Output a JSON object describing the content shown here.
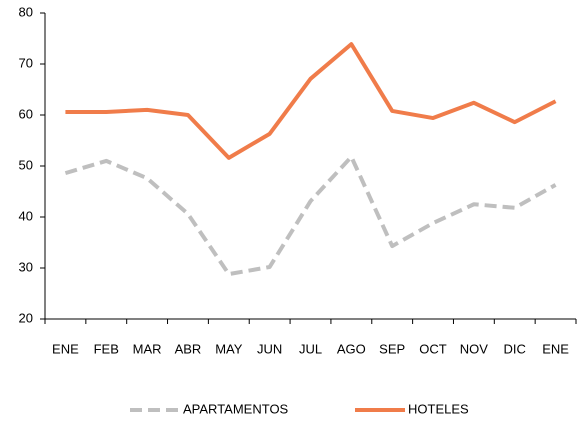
{
  "chart_data": {
    "type": "line",
    "categories": [
      "ENE",
      "FEB",
      "MAR",
      "ABR",
      "MAY",
      "JUN",
      "JUL",
      "AGO",
      "SEP",
      "OCT",
      "NOV",
      "DIC",
      "ENE"
    ],
    "series": [
      {
        "name": "APARTAMENTOS",
        "color": "#bfbfbf",
        "dashed": true,
        "values": [
          48.6,
          51.0,
          47.6,
          40.6,
          28.8,
          30.2,
          43.1,
          51.8,
          34.3,
          38.8,
          42.5,
          41.8,
          46.3
        ]
      },
      {
        "name": "HOTELES",
        "color": "#f07c4a",
        "dashed": false,
        "values": [
          60.6,
          60.6,
          61.0,
          60.0,
          51.6,
          56.3,
          67.1,
          73.9,
          60.8,
          59.4,
          62.4,
          58.6,
          62.7
        ]
      }
    ],
    "ylim": [
      20,
      80
    ],
    "yticks": [
      20,
      30,
      40,
      50,
      60,
      70,
      80
    ],
    "grid": false,
    "legend": "bottom"
  }
}
